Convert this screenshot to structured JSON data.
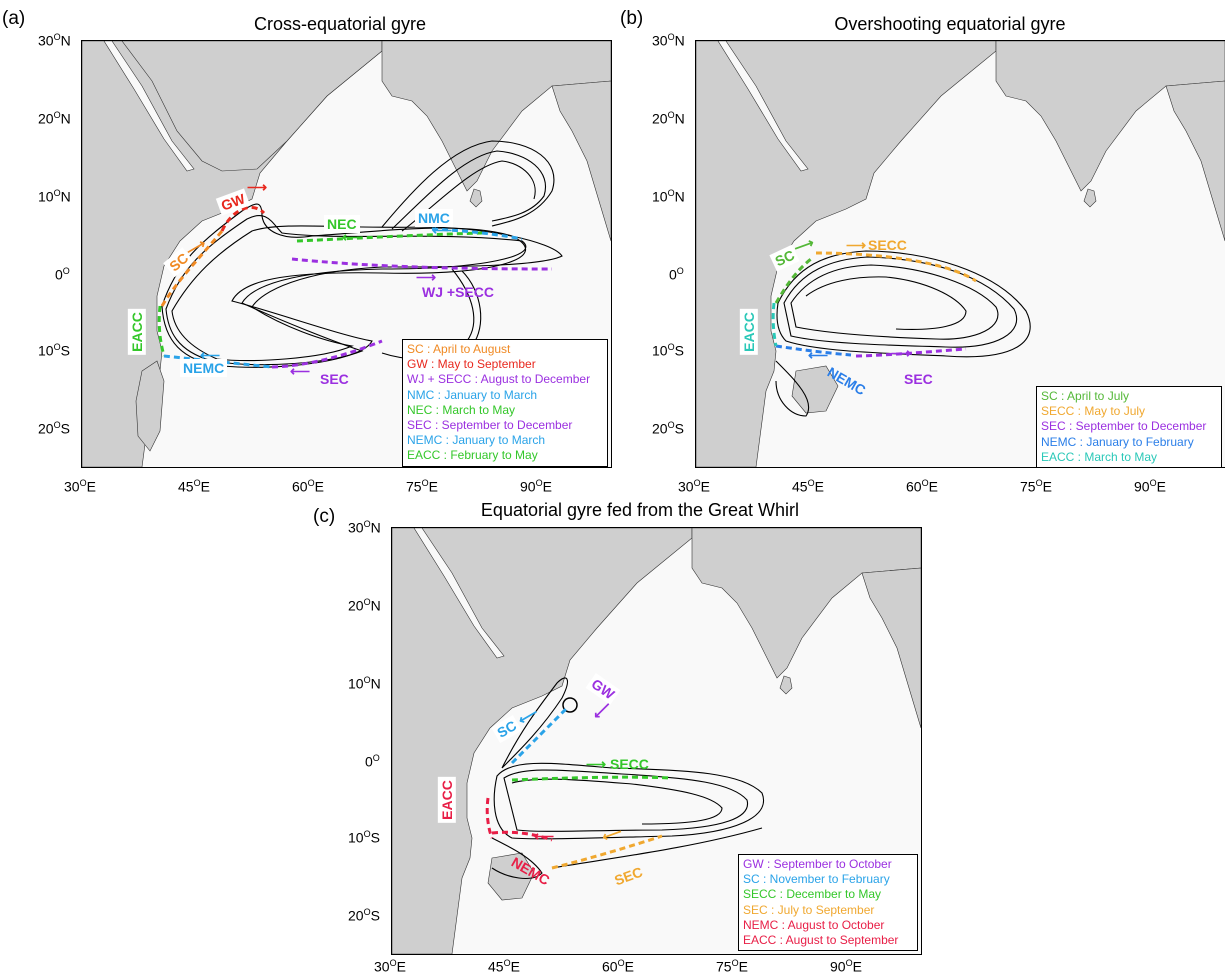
{
  "panels": [
    {
      "letter": "(a)",
      "title": "Cross-equatorial gyre",
      "lat_ticks": [
        "30",
        "20",
        "10",
        "0",
        "10",
        "20"
      ],
      "lat_hemi": [
        "N",
        "N",
        "N",
        "",
        "S",
        "S"
      ],
      "lon_ticks": [
        "30",
        "45",
        "60",
        "75",
        "90"
      ],
      "currents": [
        "GW",
        "SC",
        "NEC",
        "NMC",
        "WJ +SECC",
        "EACC",
        "NEMC",
        "SEC"
      ],
      "legend": [
        {
          "text": "SC : April to August",
          "color": "#f08a24"
        },
        {
          "text": "GW : May to September",
          "color": "#e8281e"
        },
        {
          "text": "WJ + SECC : August to December",
          "color": "#9b30e0"
        },
        {
          "text": "NMC : January to March",
          "color": "#2aa3e8"
        },
        {
          "text": "NEC : March to May",
          "color": "#34c72a"
        },
        {
          "text": "SEC : September to December",
          "color": "#9b30e0"
        },
        {
          "text": "NEMC : January to March",
          "color": "#2aa3e8"
        },
        {
          "text": "EACC : February to May",
          "color": "#34c72a"
        }
      ]
    },
    {
      "letter": "(b)",
      "title": "Overshooting equatorial gyre",
      "lat_ticks": [
        "30",
        "20",
        "10",
        "0",
        "10",
        "20"
      ],
      "lat_hemi": [
        "N",
        "N",
        "N",
        "",
        "S",
        "S"
      ],
      "lon_ticks": [
        "30",
        "45",
        "60",
        "75",
        "90"
      ],
      "currents": [
        "SC",
        "SECC",
        "EACC",
        "NEMC",
        "SEC"
      ],
      "legend": [
        {
          "text": "SC : April to July",
          "color": "#54b838"
        },
        {
          "text": "SECC : May to July",
          "color": "#f0a830"
        },
        {
          "text": "SEC : September to December",
          "color": "#9b30e0"
        },
        {
          "text": "NEMC : January to February",
          "color": "#2a7ee8"
        },
        {
          "text": "EACC : March to May",
          "color": "#2ac8b8"
        }
      ]
    },
    {
      "letter": "(c)",
      "title": "Equatorial gyre fed from the Great Whirl",
      "lat_ticks": [
        "30",
        "20",
        "10",
        "0",
        "10",
        "20"
      ],
      "lat_hemi": [
        "N",
        "N",
        "N",
        "",
        "S",
        "S"
      ],
      "lon_ticks": [
        "30",
        "45",
        "60",
        "75",
        "90"
      ],
      "currents": [
        "GW",
        "SC",
        "SECC",
        "EACC",
        "NEMC",
        "SEC"
      ],
      "legend": [
        {
          "text": "GW : September to October",
          "color": "#9b30e0"
        },
        {
          "text": "SC : November to February",
          "color": "#2aa3e8"
        },
        {
          "text": "SECC : December to May",
          "color": "#34c72a"
        },
        {
          "text": "SEC : July to September",
          "color": "#f0a830"
        },
        {
          "text": "NEMC : August to October",
          "color": "#e81e46"
        },
        {
          "text": "EACC : August to September",
          "color": "#e81e46"
        }
      ]
    }
  ],
  "colors": {
    "land": "#cfcfcf",
    "ocean": "#f9f9f9",
    "trajectory": "#000000"
  }
}
